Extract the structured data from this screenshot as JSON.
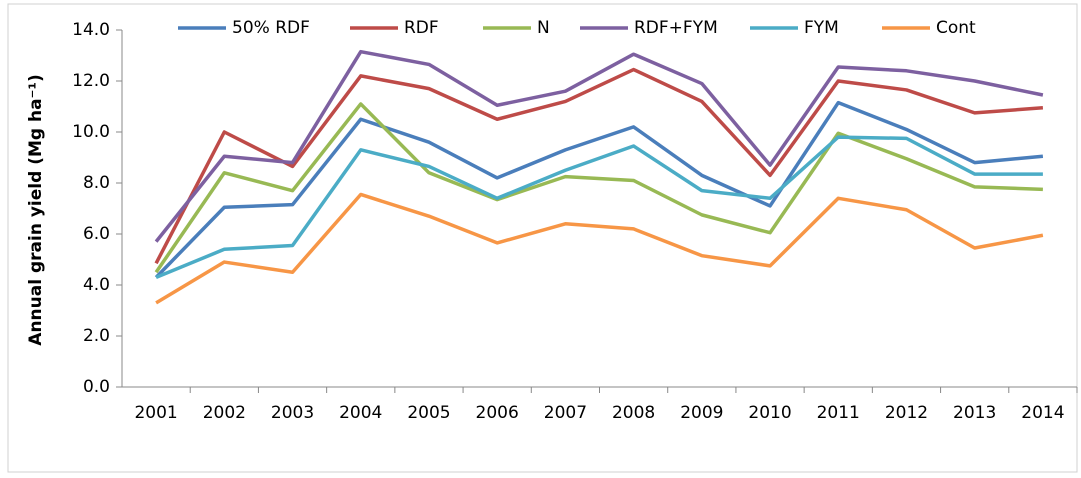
{
  "chart_data": {
    "type": "line",
    "y_label": "Annual grain yield (Mg ha⁻¹)",
    "categories": [
      "2001",
      "2002",
      "2003",
      "2004",
      "2005",
      "2006",
      "2007",
      "2008",
      "2009",
      "2010",
      "2011",
      "2012",
      "2013",
      "2014"
    ],
    "series": [
      {
        "name": "50% RDF",
        "color": "#4a7ebb",
        "values": [
          4.3,
          7.05,
          7.15,
          10.5,
          9.6,
          8.2,
          9.3,
          10.2,
          8.3,
          7.1,
          11.15,
          10.1,
          8.8,
          9.05
        ]
      },
      {
        "name": "RDF",
        "color": "#be4b48",
        "values": [
          4.85,
          10.0,
          8.65,
          12.2,
          11.7,
          10.5,
          11.2,
          12.45,
          11.2,
          8.3,
          12.0,
          11.65,
          10.75,
          10.95
        ]
      },
      {
        "name": "N",
        "color": "#98b954",
        "values": [
          4.5,
          8.4,
          7.7,
          11.1,
          8.4,
          7.35,
          8.25,
          8.1,
          6.75,
          6.05,
          9.95,
          8.95,
          7.85,
          7.75
        ]
      },
      {
        "name": "RDF+FYM",
        "color": "#7d60a0",
        "values": [
          5.7,
          9.05,
          8.8,
          13.15,
          12.65,
          11.05,
          11.6,
          13.05,
          11.9,
          8.7,
          12.55,
          12.4,
          12.0,
          11.45
        ]
      },
      {
        "name": "FYM",
        "color": "#4bacc6",
        "values": [
          4.3,
          5.4,
          5.55,
          9.3,
          8.65,
          7.4,
          8.5,
          9.45,
          7.7,
          7.4,
          9.8,
          9.75,
          8.35,
          8.35
        ]
      },
      {
        "name": "Cont",
        "color": "#f79646",
        "values": [
          3.3,
          4.9,
          4.5,
          7.55,
          6.7,
          5.65,
          6.4,
          6.2,
          5.15,
          4.75,
          7.4,
          6.95,
          5.45,
          5.95
        ]
      }
    ],
    "ylim": [
      0,
      14
    ],
    "yticks": [
      {
        "value": 0,
        "label": "0.0"
      },
      {
        "value": 2,
        "label": "2.0"
      },
      {
        "value": 4,
        "label": "4.0"
      },
      {
        "value": 6,
        "label": "6.0"
      },
      {
        "value": 8,
        "label": "8.0"
      },
      {
        "value": 10,
        "label": "10.0"
      },
      {
        "value": 12,
        "label": "12.0"
      },
      {
        "value": 14,
        "label": "14.0"
      }
    ],
    "grid": false,
    "legend": "top"
  }
}
